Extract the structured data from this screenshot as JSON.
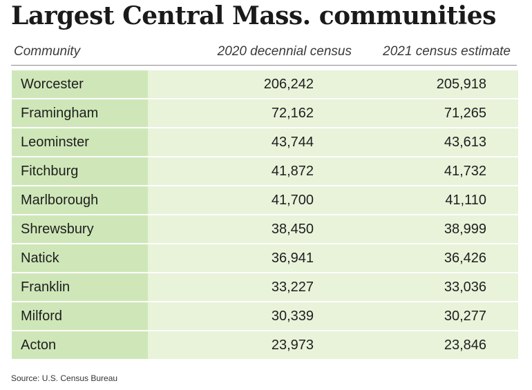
{
  "chart_data": {
    "type": "table",
    "title": "Largest Central Mass. communities",
    "columns": [
      "Community",
      "2020 decennial census",
      "2021 census estimate"
    ],
    "rows": [
      {
        "community": "Worcester",
        "census_2020": "206,242",
        "estimate_2021": "205,918"
      },
      {
        "community": "Framingham",
        "census_2020": "72,162",
        "estimate_2021": "71,265"
      },
      {
        "community": "Leominster",
        "census_2020": "43,744",
        "estimate_2021": "43,613"
      },
      {
        "community": "Fitchburg",
        "census_2020": "41,872",
        "estimate_2021": "41,732"
      },
      {
        "community": "Marlborough",
        "census_2020": "41,700",
        "estimate_2021": "41,110"
      },
      {
        "community": "Shrewsbury",
        "census_2020": "38,450",
        "estimate_2021": "38,999"
      },
      {
        "community": "Natick",
        "census_2020": "36,941",
        "estimate_2021": "36,426"
      },
      {
        "community": "Franklin",
        "census_2020": "33,227",
        "estimate_2021": "33,036"
      },
      {
        "community": "Milford",
        "census_2020": "30,339",
        "estimate_2021": "30,277"
      },
      {
        "community": "Acton",
        "census_2020": "23,973",
        "estimate_2021": "23,846"
      }
    ],
    "source": "Source: U.S. Census Bureau"
  },
  "colors": {
    "name_cell": "#cfe7b8",
    "value_cell": "#e8f3da"
  }
}
